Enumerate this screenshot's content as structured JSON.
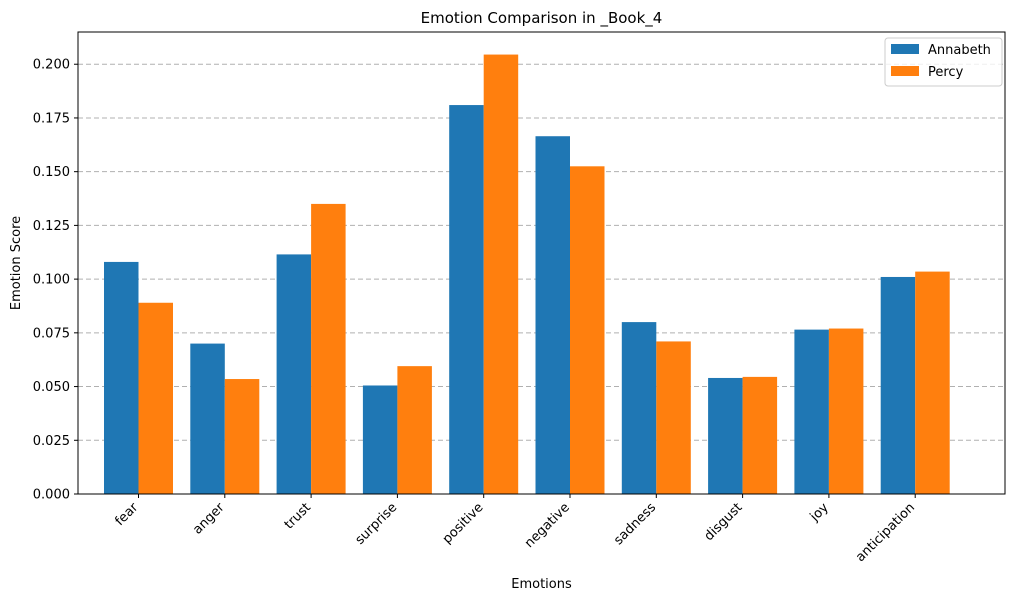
{
  "chart_data": {
    "type": "bar",
    "title": "Emotion Comparison in _Book_4",
    "xlabel": "Emotions",
    "ylabel": "Emotion Score",
    "categories": [
      "fear",
      "anger",
      "trust",
      "surprise",
      "positive",
      "negative",
      "sadness",
      "disgust",
      "joy",
      "anticipation"
    ],
    "series": [
      {
        "name": "Annabeth",
        "color": "#1f77b4",
        "values": [
          0.108,
          0.07,
          0.1115,
          0.0505,
          0.181,
          0.1665,
          0.08,
          0.054,
          0.0765,
          0.101
        ]
      },
      {
        "name": "Percy",
        "color": "#ff7f0e",
        "values": [
          0.089,
          0.0535,
          0.135,
          0.0595,
          0.2045,
          0.1525,
          0.071,
          0.0545,
          0.077,
          0.1035
        ]
      }
    ],
    "ylim": [
      0,
      0.215
    ],
    "yticks": [
      "0.000",
      "0.025",
      "0.050",
      "0.075",
      "0.100",
      "0.125",
      "0.150",
      "0.175",
      "0.200"
    ],
    "grid": "y-dashed",
    "legend_position": "top-right"
  }
}
